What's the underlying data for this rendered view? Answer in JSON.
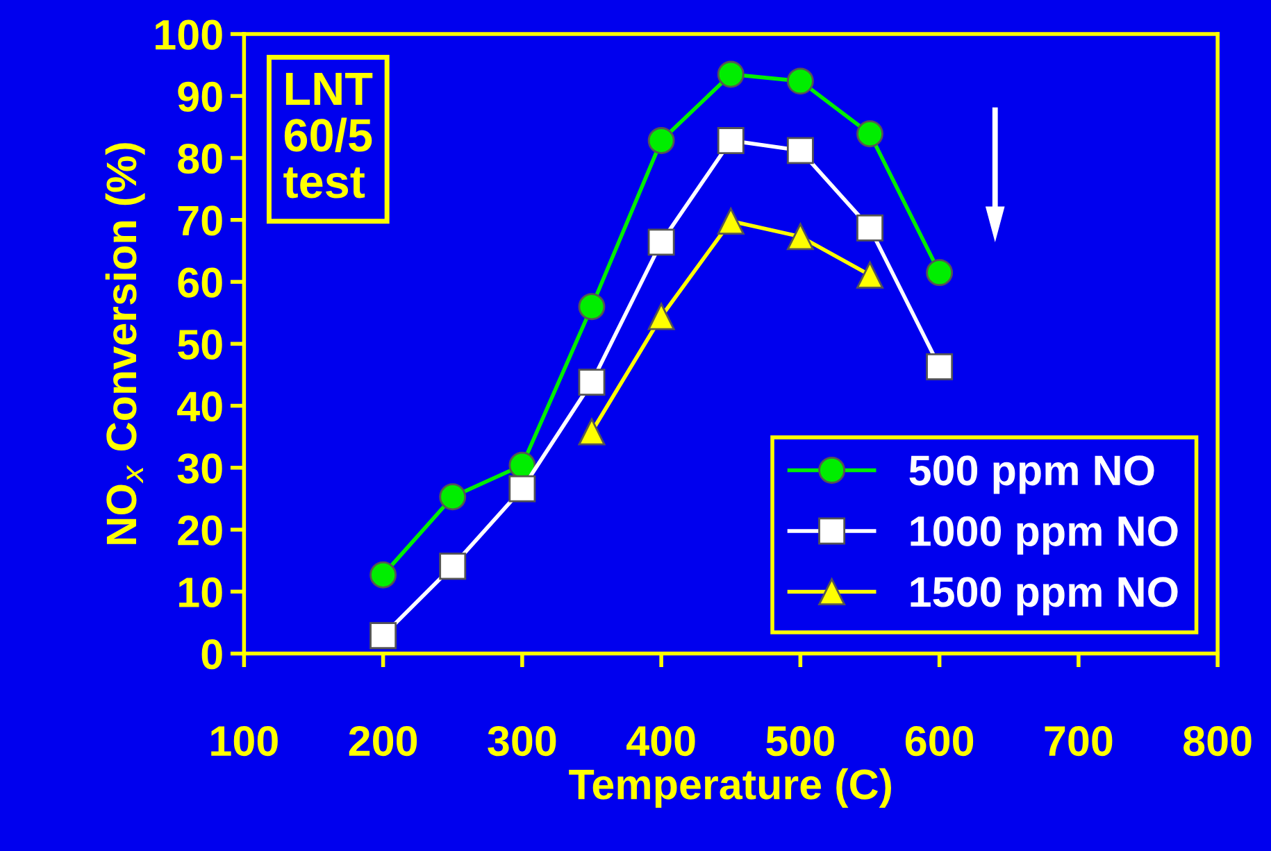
{
  "chart_data": {
    "type": "line",
    "xlabel": "Temperature (C)",
    "ylabel": "NO$_{x}$ Conversion (%)",
    "annotations": [
      "LNT\n60/5\ntest"
    ],
    "xlim": [
      100,
      800
    ],
    "xticks": [
      100,
      200,
      300,
      400,
      500,
      600,
      700,
      800
    ],
    "ylim": [
      0,
      100
    ],
    "yticks": [
      0,
      10,
      20,
      30,
      40,
      50,
      60,
      70,
      80,
      90,
      100
    ],
    "grid": false,
    "legend": "bottom right",
    "series": [
      {
        "name": "500 ppm NO",
        "color": "#00ee00",
        "marker": "circle",
        "x": [
          200,
          250,
          300,
          350,
          400,
          450,
          500,
          550,
          600
        ],
        "values": [
          12.7,
          25.3,
          30.4,
          56,
          82.8,
          93.5,
          92.4,
          83.9,
          61.5
        ]
      },
      {
        "name": "1000 ppm NO",
        "color": "#ffffff",
        "marker": "square",
        "x": [
          200,
          250,
          300,
          350,
          400,
          450,
          500,
          550,
          600
        ],
        "values": [
          2.9,
          14.1,
          26.6,
          43.8,
          66.4,
          82.8,
          81.2,
          68.7,
          46.3
        ]
      },
      {
        "name": "1500 ppm NO",
        "color": "#ffff00",
        "marker": "triangle",
        "x": [
          350,
          400,
          450,
          500,
          550
        ],
        "values": [
          35.8,
          54.4,
          69.8,
          67.3,
          61.1
        ]
      }
    ]
  }
}
